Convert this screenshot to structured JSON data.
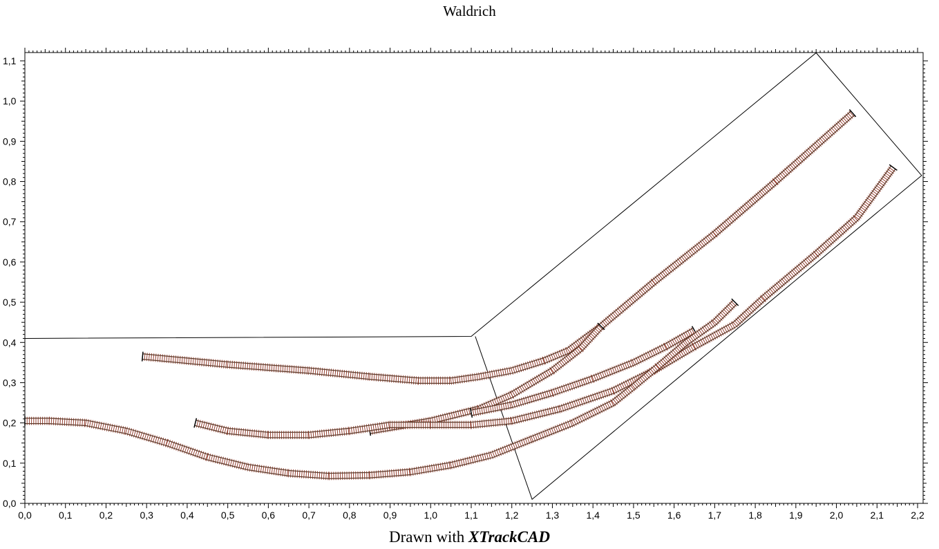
{
  "title": "Waldrich",
  "footer": {
    "prefix": "Drawn with ",
    "brand": "XTrackCAD"
  },
  "axes": {
    "x_ticks": [
      "0,0",
      "0,1",
      "0,2",
      "0,3",
      "0,4",
      "0,5",
      "0,6",
      "0,7",
      "0,8",
      "0,9",
      "1,0",
      "1,1",
      "1,2",
      "1,3",
      "1,4",
      "1,5",
      "1,6",
      "1,7",
      "1,8",
      "1,9",
      "2,0",
      "2,1",
      "2,2"
    ],
    "y_ticks": [
      "0,0",
      "0,1",
      "0,2",
      "0,3",
      "0,4",
      "0,5",
      "0,6",
      "0,7",
      "0,8",
      "0,9",
      "1,0",
      "1,1"
    ],
    "xlim": [
      0,
      2.2
    ],
    "ylim": [
      0,
      1.1
    ]
  },
  "colors": {
    "rail": "#5a3a2a",
    "tie": "#8b2e1e",
    "line": "#000000",
    "background": "#ffffff"
  },
  "layout_outline": {
    "points": [
      [
        0,
        0.41
      ],
      [
        1.1,
        0.415
      ],
      [
        1.95,
        1.12
      ],
      [
        2.21,
        0.815
      ],
      [
        1.25,
        0.01
      ],
      [
        1.11,
        0.415
      ]
    ]
  },
  "tracks": [
    {
      "name": "track-upper",
      "points": [
        [
          0.29,
          0.365
        ],
        [
          0.5,
          0.345
        ],
        [
          0.7,
          0.33
        ],
        [
          0.85,
          0.315
        ],
        [
          0.97,
          0.305
        ],
        [
          1.05,
          0.305
        ],
        [
          1.12,
          0.315
        ],
        [
          1.2,
          0.33
        ],
        [
          1.28,
          0.355
        ],
        [
          1.34,
          0.38
        ],
        [
          1.42,
          0.44
        ],
        [
          1.55,
          0.55
        ],
        [
          1.7,
          0.67
        ],
        [
          1.85,
          0.8
        ],
        [
          2.04,
          0.97
        ]
      ]
    },
    {
      "name": "track-branch-upper",
      "points": [
        [
          0.85,
          0.18
        ],
        [
          1.0,
          0.205
        ],
        [
          1.12,
          0.235
        ],
        [
          1.2,
          0.27
        ],
        [
          1.3,
          0.33
        ],
        [
          1.37,
          0.385
        ],
        [
          1.42,
          0.44
        ]
      ]
    },
    {
      "name": "track-middle",
      "points": [
        [
          0.42,
          0.2
        ],
        [
          0.5,
          0.18
        ],
        [
          0.6,
          0.17
        ],
        [
          0.7,
          0.17
        ],
        [
          0.8,
          0.18
        ],
        [
          0.9,
          0.195
        ],
        [
          1.0,
          0.195
        ],
        [
          1.1,
          0.195
        ],
        [
          1.2,
          0.205
        ],
        [
          1.32,
          0.235
        ],
        [
          1.45,
          0.28
        ],
        [
          1.55,
          0.33
        ],
        [
          1.65,
          0.39
        ],
        [
          1.75,
          0.445
        ],
        [
          1.82,
          0.51
        ],
        [
          1.95,
          0.62
        ],
        [
          2.05,
          0.71
        ],
        [
          2.14,
          0.835
        ]
      ]
    },
    {
      "name": "track-branch-middle",
      "points": [
        [
          1.1,
          0.225
        ],
        [
          1.2,
          0.245
        ],
        [
          1.3,
          0.275
        ],
        [
          1.4,
          0.31
        ],
        [
          1.5,
          0.35
        ],
        [
          1.58,
          0.39
        ],
        [
          1.65,
          0.43
        ]
      ]
    },
    {
      "name": "track-lower",
      "points": [
        [
          0.0,
          0.205
        ],
        [
          0.06,
          0.205
        ],
        [
          0.15,
          0.2
        ],
        [
          0.25,
          0.18
        ],
        [
          0.35,
          0.15
        ],
        [
          0.45,
          0.115
        ],
        [
          0.55,
          0.09
        ],
        [
          0.65,
          0.075
        ],
        [
          0.75,
          0.068
        ],
        [
          0.85,
          0.07
        ],
        [
          0.95,
          0.078
        ],
        [
          1.05,
          0.095
        ],
        [
          1.15,
          0.12
        ],
        [
          1.25,
          0.16
        ],
        [
          1.35,
          0.2
        ],
        [
          1.45,
          0.25
        ],
        [
          1.5,
          0.29
        ],
        [
          1.56,
          0.34
        ],
        [
          1.63,
          0.4
        ],
        [
          1.7,
          0.45
        ],
        [
          1.75,
          0.5
        ]
      ]
    }
  ]
}
